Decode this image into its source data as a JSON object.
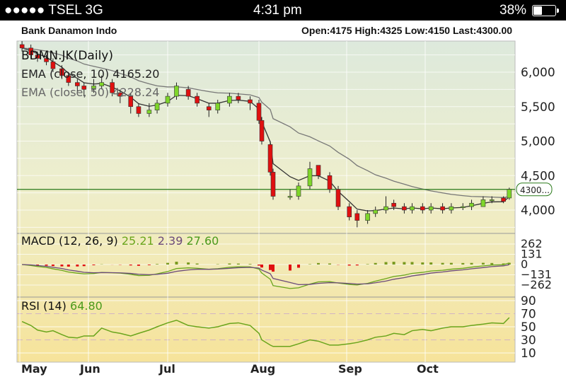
{
  "status_bar": {
    "carrier": "●●●●● TSEL   3G",
    "time": "4:31 pm",
    "battery": "38%",
    "battery_level": 0.38
  },
  "header": {
    "name": "Bank Danamon Indo",
    "quote": "Open:4175 High:4325 Low:4150 Last:4300.00"
  },
  "colors": {
    "up": "#7fd62a",
    "down": "#e01010",
    "ema10": "#333333",
    "ema50": "#777777",
    "macd": "#6aa51c",
    "signal": "#6b4a7a",
    "rsi": "#6aa51c",
    "last_line": "#2a7a1a"
  },
  "chart_data": [
    {
      "type": "candlestick",
      "title": "BDMN.JK(Daily)",
      "legend": [
        "EMA (close, 10) 4165.20",
        "EMA (close, 50) 4228.24"
      ],
      "yticks": [
        "6,000",
        "5,500",
        "5,000",
        "4,500",
        "4,000"
      ],
      "ytick_values": [
        6000,
        5500,
        5000,
        4500,
        4000
      ],
      "ylim": [
        3600,
        6400
      ],
      "xticks": [
        "May",
        "Jun",
        "Jul",
        "Aug",
        "Sep",
        "Oct"
      ],
      "last_label": "4300...",
      "last_value": 4300,
      "candles": [
        [
          "2013-05-02",
          6400,
          6450,
          6300,
          6350
        ],
        [
          "2013-05-06",
          6350,
          6400,
          6200,
          6250
        ],
        [
          "2013-05-09",
          6250,
          6300,
          6150,
          6200
        ],
        [
          "2013-05-13",
          6200,
          6250,
          6100,
          6150
        ],
        [
          "2013-05-16",
          6150,
          6200,
          6000,
          6050
        ],
        [
          "2013-05-20",
          6050,
          6100,
          5900,
          5950
        ],
        [
          "2013-05-23",
          5950,
          6000,
          5800,
          5850
        ],
        [
          "2013-05-27",
          5850,
          5900,
          5700,
          5800
        ],
        [
          "2013-05-30",
          5800,
          5850,
          5650,
          5750
        ],
        [
          "2013-06-03",
          5750,
          5900,
          5700,
          5800
        ],
        [
          "2013-06-06",
          5800,
          5950,
          5750,
          5850
        ],
        [
          "2013-06-10",
          5850,
          5900,
          5650,
          5700
        ],
        [
          "2013-06-13",
          5700,
          5750,
          5550,
          5650
        ],
        [
          "2013-06-17",
          5650,
          5700,
          5400,
          5500
        ],
        [
          "2013-06-20",
          5500,
          5550,
          5350,
          5400
        ],
        [
          "2013-06-24",
          5400,
          5550,
          5350,
          5450
        ],
        [
          "2013-06-27",
          5450,
          5600,
          5400,
          5550
        ],
        [
          "2013-07-01",
          5550,
          5700,
          5500,
          5650
        ],
        [
          "2013-07-04",
          5650,
          5850,
          5600,
          5800
        ],
        [
          "2013-07-08",
          5750,
          5800,
          5600,
          5650
        ],
        [
          "2013-07-11",
          5650,
          5700,
          5500,
          5550
        ],
        [
          "2013-07-15",
          5500,
          5550,
          5350,
          5450
        ],
        [
          "2013-07-18",
          5450,
          5600,
          5400,
          5550
        ],
        [
          "2013-07-22",
          5550,
          5700,
          5500,
          5650
        ],
        [
          "2013-07-25",
          5650,
          5700,
          5550,
          5600
        ],
        [
          "2013-07-29",
          5600,
          5650,
          5450,
          5550
        ],
        [
          "2013-08-01",
          5550,
          5600,
          5250,
          5300
        ],
        [
          "2013-08-02",
          5300,
          5350,
          4950,
          5000
        ],
        [
          "2013-08-05",
          4950,
          5000,
          4500,
          4550
        ],
        [
          "2013-08-06",
          4550,
          4600,
          4150,
          4200
        ],
        [
          "2013-08-12",
          4200,
          4300,
          4150,
          4200
        ],
        [
          "2013-08-15",
          4200,
          4400,
          4150,
          4350
        ],
        [
          "2013-08-19",
          4350,
          4700,
          4300,
          4600
        ],
        [
          "2013-08-22",
          4650,
          4650,
          4450,
          4500
        ],
        [
          "2013-08-26",
          4500,
          4550,
          4250,
          4300
        ],
        [
          "2013-08-29",
          4300,
          4350,
          4000,
          4050
        ],
        [
          "2013-09-02",
          4050,
          4100,
          3850,
          3900
        ],
        [
          "2013-09-05",
          3950,
          4000,
          3750,
          3850
        ],
        [
          "2013-09-09",
          3850,
          4000,
          3800,
          3950
        ],
        [
          "2013-09-12",
          3950,
          4050,
          3900,
          4000
        ],
        [
          "2013-09-16",
          4000,
          4200,
          3950,
          4050
        ],
        [
          "2013-09-19",
          4100,
          4150,
          4000,
          4050
        ],
        [
          "2013-09-23",
          4050,
          4100,
          3950,
          4000
        ],
        [
          "2013-09-26",
          4000,
          4100,
          3950,
          4050
        ],
        [
          "2013-09-30",
          4050,
          4100,
          3950,
          4000
        ],
        [
          "2013-10-03",
          4000,
          4100,
          3950,
          4050
        ],
        [
          "2013-10-07",
          4050,
          4100,
          3950,
          4000
        ],
        [
          "2013-10-10",
          4000,
          4100,
          3950,
          4050
        ],
        [
          "2013-10-14",
          4050,
          4100,
          4000,
          4050
        ],
        [
          "2013-10-17",
          4050,
          4150,
          4000,
          4100
        ],
        [
          "2013-10-21",
          4050,
          4200,
          4050,
          4150
        ],
        [
          "2013-10-24",
          4150,
          4200,
          4100,
          4150
        ],
        [
          "2013-10-28",
          4175,
          4200,
          4100,
          4125
        ],
        [
          "2013-10-30",
          4175,
          4325,
          4150,
          4300
        ]
      ]
    },
    {
      "type": "macd",
      "label": "MACD (12, 26, 9)",
      "values": [
        "25.21",
        "2.39",
        "27.60"
      ],
      "yticks": [
        "262",
        "131",
        "0",
        "−131",
        "−262"
      ],
      "ytick_values": [
        262,
        131,
        0,
        -131,
        -262
      ]
    },
    {
      "type": "line",
      "label": "RSI (14)",
      "value": "64.80",
      "yticks": [
        "90",
        "70",
        "50",
        "30",
        "10"
      ],
      "ytick_values": [
        90,
        70,
        50,
        30,
        10
      ],
      "rsi": [
        58,
        52,
        45,
        42,
        44,
        38,
        34,
        33,
        36,
        36,
        48,
        42,
        40,
        36,
        40,
        45,
        50,
        56,
        60,
        52,
        50,
        48,
        50,
        55,
        56,
        52,
        40,
        30,
        22,
        20,
        20,
        24,
        30,
        28,
        22,
        22,
        24,
        26,
        30,
        34,
        36,
        40,
        38,
        44,
        46,
        44,
        48,
        50,
        50,
        52,
        54,
        56,
        55,
        64
      ]
    }
  ]
}
